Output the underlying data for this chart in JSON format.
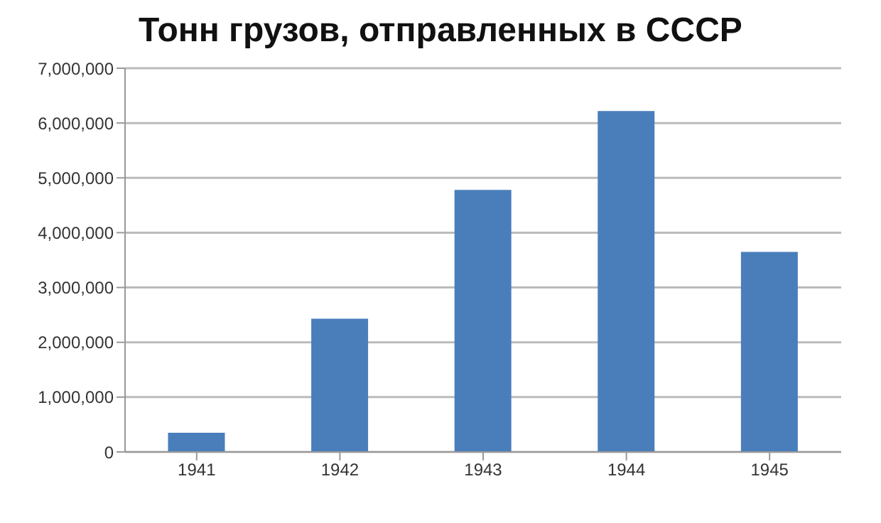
{
  "chart_data": {
    "type": "bar",
    "title": "Тонн грузов, отправленных в СССР",
    "categories": [
      "1941",
      "1942",
      "1943",
      "1944",
      "1945"
    ],
    "values": [
      350000,
      2430000,
      4780000,
      6220000,
      3650000
    ],
    "color": "#4a7ebb",
    "ylim": [
      0,
      7000000
    ],
    "yticks": [
      0,
      {
        "value": 1000000,
        "label": "1,000,000"
      },
      {
        "value": 2000000,
        "label": "2,000,000"
      },
      {
        "value": 3000000,
        "label": "3,000,000"
      },
      {
        "value": 4000000,
        "label": "4,000,000"
      },
      {
        "value": 5000000,
        "label": "5,000,000"
      },
      {
        "value": 6000000,
        "label": "6,000,000"
      },
      {
        "value": 7000000,
        "label": "7,000,000"
      }
    ],
    "grid": "y"
  }
}
